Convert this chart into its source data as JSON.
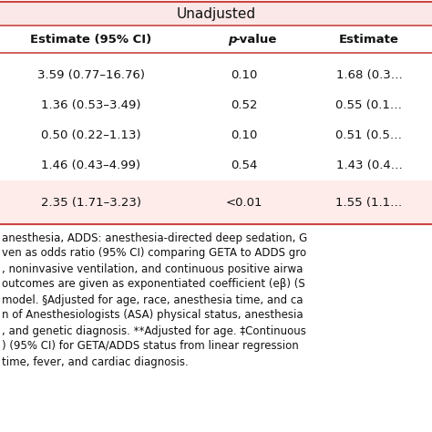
{
  "title_row": "Unadjusted",
  "header1": "Estimate (95% CI)",
  "header2": "p-value",
  "header3": "Estimate",
  "rows": [
    {
      "estimate": "3.59 (0.77–16.76)",
      "pvalue": "0.10",
      "estimate2": "1.68 (0.3…"
    },
    {
      "estimate": "1.36 (0.53–3.49)",
      "pvalue": "0.52",
      "estimate2": "0.55 (0.1…"
    },
    {
      "estimate": "0.50 (0.22–1.13)",
      "pvalue": "0.10",
      "estimate2": "0.51 (0.5…"
    },
    {
      "estimate": "1.46 (0.43–4.99)",
      "pvalue": "0.54",
      "estimate2": "1.43 (0.4…"
    },
    {
      "estimate": "2.35 (1.71–3.23)",
      "pvalue": "<0.01",
      "estimate2": "1.55 (1.1…"
    }
  ],
  "footer_lines": [
    "anesthesia, ADDS: anesthesia-directed deep sedation, G",
    "ven as odds ratio (95% CI) comparing GETA to ADDS gro",
    ", noninvasive ventilation, and continuous positive airwa",
    "outcomes are given as exponentiated coefficient (eβ) (S",
    "model. §Adjusted for age, race, anesthesia time, and ca",
    "n of Anesthesiologists (ASA) physical status, anesthesia",
    ", and genetic diagnosis. **Adjusted for age. ‡Continuous",
    ") (95% CI) for GETA/ADDS status from linear regression",
    "time, fever, and cardiac diagnosis."
  ],
  "title_bg": "#fae8e8",
  "header_bg": "#ffffff",
  "white_bg": "#ffffff",
  "pink_row_bg": "#fdecea",
  "border_color": "#cc4444",
  "text_color": "#111111"
}
